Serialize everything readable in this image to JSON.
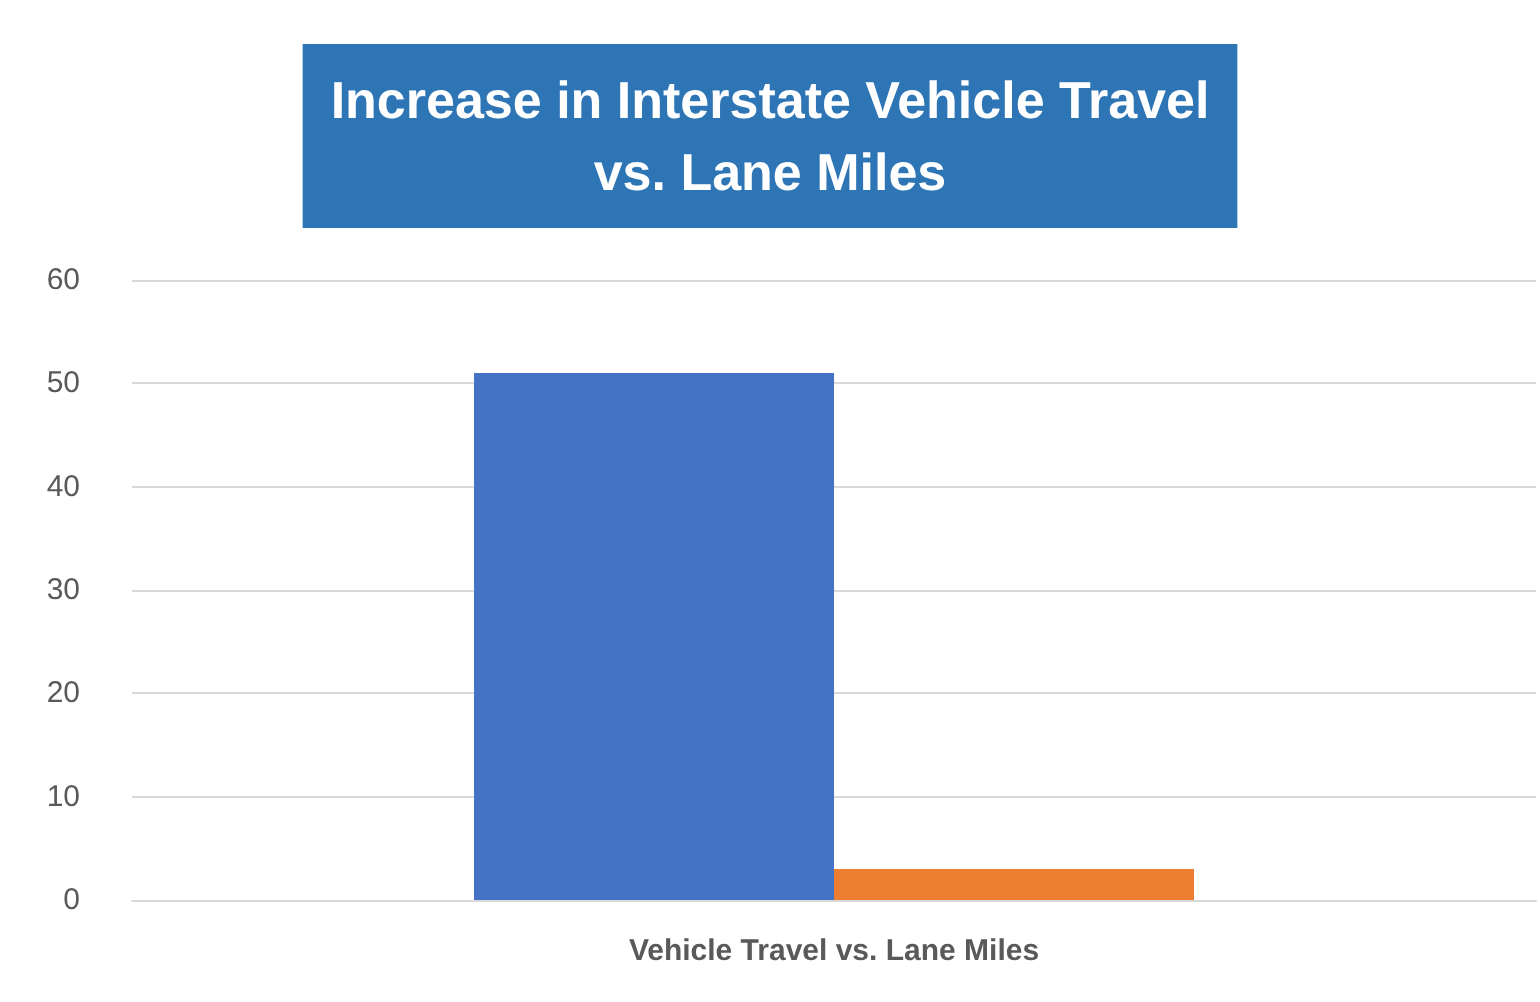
{
  "chart_data": {
    "type": "bar",
    "title": "Increase in Interstate Vehicle Travel\nvs. Lane Miles",
    "categories": [
      "Vehicle Travel vs. Lane Miles"
    ],
    "series": [
      {
        "color": "#4472c4",
        "values": [
          51
        ]
      },
      {
        "color": "#ed7d31",
        "values": [
          3
        ]
      }
    ],
    "ylim": [
      0,
      60
    ],
    "yticks": [
      0,
      10,
      20,
      30,
      40,
      50,
      60
    ],
    "grid": "y"
  }
}
